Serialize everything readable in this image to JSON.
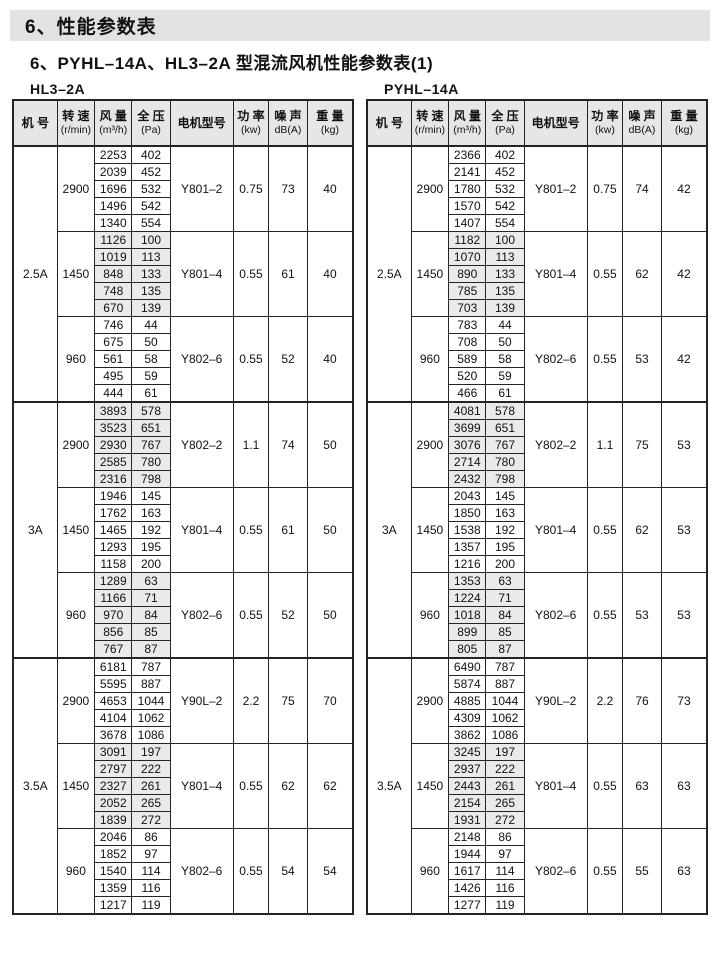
{
  "page": {
    "title": "6、性能参数表",
    "subtitle": "6、PYHL–14A、HL3–2A 型混流风机性能参数表(1)"
  },
  "colors": {
    "title_band_bg": "#e2e2e2",
    "header_bg": "#e6e6e6",
    "shaded_block": "#dedede",
    "shaded_subcell": "#eaeaea",
    "border": "#242424"
  },
  "columns": [
    {
      "key": "size",
      "name": "机 号",
      "unit": ""
    },
    {
      "key": "speed",
      "name": "转 速",
      "unit": "(r/min)"
    },
    {
      "key": "flow",
      "name": "风 量",
      "unit": "(m³/h)"
    },
    {
      "key": "pressure",
      "name": "全 压",
      "unit": "(Pa)"
    },
    {
      "key": "motor",
      "name": "电机型号",
      "unit": ""
    },
    {
      "key": "power",
      "name": "功 率",
      "unit": "(kw)"
    },
    {
      "key": "noise",
      "name": "噪 声",
      "unit": "dB(A)"
    },
    {
      "key": "weight",
      "name": "重 量",
      "unit": "(kg)"
    }
  ],
  "tables": [
    {
      "label": "HL3–2A",
      "sizes": [
        {
          "size": "2.5A",
          "blocks": [
            {
              "speed": "2900",
              "shaded": false,
              "motor": "Y801–2",
              "power": "0.75",
              "noise": "73",
              "weight": "40",
              "rows": [
                [
                  "2253",
                  "402"
                ],
                [
                  "2039",
                  "452"
                ],
                [
                  "1696",
                  "532"
                ],
                [
                  "1496",
                  "542"
                ],
                [
                  "1340",
                  "554"
                ]
              ]
            },
            {
              "speed": "1450",
              "shaded": true,
              "motor": "Y801–4",
              "power": "0.55",
              "noise": "61",
              "weight": "40",
              "rows": [
                [
                  "1126",
                  "100"
                ],
                [
                  "1019",
                  "113"
                ],
                [
                  "848",
                  "133"
                ],
                [
                  "748",
                  "135"
                ],
                [
                  "670",
                  "139"
                ]
              ]
            },
            {
              "speed": "960",
              "shaded": false,
              "motor": "Y802–6",
              "power": "0.55",
              "noise": "52",
              "weight": "40",
              "rows": [
                [
                  "746",
                  "44"
                ],
                [
                  "675",
                  "50"
                ],
                [
                  "561",
                  "58"
                ],
                [
                  "495",
                  "59"
                ],
                [
                  "444",
                  "61"
                ]
              ]
            }
          ]
        },
        {
          "size": "3A",
          "blocks": [
            {
              "speed": "2900",
              "shaded": true,
              "motor": "Y802–2",
              "power": "1.1",
              "noise": "74",
              "weight": "50",
              "rows": [
                [
                  "3893",
                  "578"
                ],
                [
                  "3523",
                  "651"
                ],
                [
                  "2930",
                  "767"
                ],
                [
                  "2585",
                  "780"
                ],
                [
                  "2316",
                  "798"
                ]
              ]
            },
            {
              "speed": "1450",
              "shaded": false,
              "motor": "Y801–4",
              "power": "0.55",
              "noise": "61",
              "weight": "50",
              "rows": [
                [
                  "1946",
                  "145"
                ],
                [
                  "1762",
                  "163"
                ],
                [
                  "1465",
                  "192"
                ],
                [
                  "1293",
                  "195"
                ],
                [
                  "1158",
                  "200"
                ]
              ]
            },
            {
              "speed": "960",
              "shaded": true,
              "motor": "Y802–6",
              "power": "0.55",
              "noise": "52",
              "weight": "50",
              "rows": [
                [
                  "1289",
                  "63"
                ],
                [
                  "1166",
                  "71"
                ],
                [
                  "970",
                  "84"
                ],
                [
                  "856",
                  "85"
                ],
                [
                  "767",
                  "87"
                ]
              ]
            }
          ]
        },
        {
          "size": "3.5A",
          "blocks": [
            {
              "speed": "2900",
              "shaded": false,
              "motor": "Y90L–2",
              "power": "2.2",
              "noise": "75",
              "weight": "70",
              "rows": [
                [
                  "6181",
                  "787"
                ],
                [
                  "5595",
                  "887"
                ],
                [
                  "4653",
                  "1044"
                ],
                [
                  "4104",
                  "1062"
                ],
                [
                  "3678",
                  "1086"
                ]
              ]
            },
            {
              "speed": "1450",
              "shaded": true,
              "motor": "Y801–4",
              "power": "0.55",
              "noise": "62",
              "weight": "62",
              "rows": [
                [
                  "3091",
                  "197"
                ],
                [
                  "2797",
                  "222"
                ],
                [
                  "2327",
                  "261"
                ],
                [
                  "2052",
                  "265"
                ],
                [
                  "1839",
                  "272"
                ]
              ]
            },
            {
              "speed": "960",
              "shaded": false,
              "motor": "Y802–6",
              "power": "0.55",
              "noise": "54",
              "weight": "54",
              "rows": [
                [
                  "2046",
                  "86"
                ],
                [
                  "1852",
                  "97"
                ],
                [
                  "1540",
                  "114"
                ],
                [
                  "1359",
                  "116"
                ],
                [
                  "1217",
                  "119"
                ]
              ]
            }
          ]
        }
      ]
    },
    {
      "label": "PYHL–14A",
      "sizes": [
        {
          "size": "2.5A",
          "blocks": [
            {
              "speed": "2900",
              "shaded": false,
              "motor": "Y801–2",
              "power": "0.75",
              "noise": "74",
              "weight": "42",
              "rows": [
                [
                  "2366",
                  "402"
                ],
                [
                  "2141",
                  "452"
                ],
                [
                  "1780",
                  "532"
                ],
                [
                  "1570",
                  "542"
                ],
                [
                  "1407",
                  "554"
                ]
              ]
            },
            {
              "speed": "1450",
              "shaded": true,
              "motor": "Y801–4",
              "power": "0.55",
              "noise": "62",
              "weight": "42",
              "rows": [
                [
                  "1182",
                  "100"
                ],
                [
                  "1070",
                  "113"
                ],
                [
                  "890",
                  "133"
                ],
                [
                  "785",
                  "135"
                ],
                [
                  "703",
                  "139"
                ]
              ]
            },
            {
              "speed": "960",
              "shaded": false,
              "motor": "Y802–6",
              "power": "0.55",
              "noise": "53",
              "weight": "42",
              "rows": [
                [
                  "783",
                  "44"
                ],
                [
                  "708",
                  "50"
                ],
                [
                  "589",
                  "58"
                ],
                [
                  "520",
                  "59"
                ],
                [
                  "466",
                  "61"
                ]
              ]
            }
          ]
        },
        {
          "size": "3A",
          "blocks": [
            {
              "speed": "2900",
              "shaded": true,
              "motor": "Y802–2",
              "power": "1.1",
              "noise": "75",
              "weight": "53",
              "rows": [
                [
                  "4081",
                  "578"
                ],
                [
                  "3699",
                  "651"
                ],
                [
                  "3076",
                  "767"
                ],
                [
                  "2714",
                  "780"
                ],
                [
                  "2432",
                  "798"
                ]
              ]
            },
            {
              "speed": "1450",
              "shaded": false,
              "motor": "Y801–4",
              "power": "0.55",
              "noise": "62",
              "weight": "53",
              "rows": [
                [
                  "2043",
                  "145"
                ],
                [
                  "1850",
                  "163"
                ],
                [
                  "1538",
                  "192"
                ],
                [
                  "1357",
                  "195"
                ],
                [
                  "1216",
                  "200"
                ]
              ]
            },
            {
              "speed": "960",
              "shaded": true,
              "motor": "Y802–6",
              "power": "0.55",
              "noise": "53",
              "weight": "53",
              "rows": [
                [
                  "1353",
                  "63"
                ],
                [
                  "1224",
                  "71"
                ],
                [
                  "1018",
                  "84"
                ],
                [
                  "899",
                  "85"
                ],
                [
                  "805",
                  "87"
                ]
              ]
            }
          ]
        },
        {
          "size": "3.5A",
          "blocks": [
            {
              "speed": "2900",
              "shaded": false,
              "motor": "Y90L–2",
              "power": "2.2",
              "noise": "76",
              "weight": "73",
              "rows": [
                [
                  "6490",
                  "787"
                ],
                [
                  "5874",
                  "887"
                ],
                [
                  "4885",
                  "1044"
                ],
                [
                  "4309",
                  "1062"
                ],
                [
                  "3862",
                  "1086"
                ]
              ]
            },
            {
              "speed": "1450",
              "shaded": true,
              "motor": "Y801–4",
              "power": "0.55",
              "noise": "63",
              "weight": "63",
              "rows": [
                [
                  "3245",
                  "197"
                ],
                [
                  "2937",
                  "222"
                ],
                [
                  "2443",
                  "261"
                ],
                [
                  "2154",
                  "265"
                ],
                [
                  "1931",
                  "272"
                ]
              ]
            },
            {
              "speed": "960",
              "shaded": false,
              "motor": "Y802–6",
              "power": "0.55",
              "noise": "55",
              "weight": "63",
              "rows": [
                [
                  "2148",
                  "86"
                ],
                [
                  "1944",
                  "97"
                ],
                [
                  "1617",
                  "114"
                ],
                [
                  "1426",
                  "116"
                ],
                [
                  "1277",
                  "119"
                ]
              ]
            }
          ]
        }
      ]
    }
  ]
}
